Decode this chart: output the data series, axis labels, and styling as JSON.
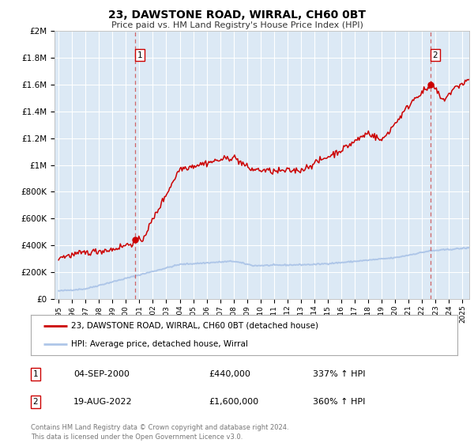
{
  "title": "23, DAWSTONE ROAD, WIRRAL, CH60 0BT",
  "subtitle": "Price paid vs. HM Land Registry's House Price Index (HPI)",
  "background_color": "#dce9f5",
  "plot_bg_color": "#dce9f5",
  "ylim": [
    0,
    2000000
  ],
  "yticks": [
    0,
    200000,
    400000,
    600000,
    800000,
    1000000,
    1200000,
    1400000,
    1600000,
    1800000,
    2000000
  ],
  "ytick_labels": [
    "£0",
    "£200K",
    "£400K",
    "£600K",
    "£800K",
    "£1M",
    "£1.2M",
    "£1.4M",
    "£1.6M",
    "£1.8M",
    "£2M"
  ],
  "xlim_start": 1994.7,
  "xlim_end": 2025.5,
  "hpi_color": "#aec6e8",
  "price_color": "#cc0000",
  "marker1_x": 2000.67,
  "marker1_y": 440000,
  "marker2_x": 2022.63,
  "marker2_y": 1600000,
  "vline1_x": 2000.67,
  "vline2_x": 2022.63,
  "legend_label1": "23, DAWSTONE ROAD, WIRRAL, CH60 0BT (detached house)",
  "legend_label2": "HPI: Average price, detached house, Wirral",
  "annot1_num": "1",
  "annot2_num": "2",
  "annot1_date": "04-SEP-2000",
  "annot1_price": "£440,000",
  "annot1_hpi": "337% ↑ HPI",
  "annot2_date": "19-AUG-2022",
  "annot2_price": "£1,600,000",
  "annot2_hpi": "360% ↑ HPI",
  "footer": "Contains HM Land Registry data © Crown copyright and database right 2024.\nThis data is licensed under the Open Government Licence v3.0."
}
